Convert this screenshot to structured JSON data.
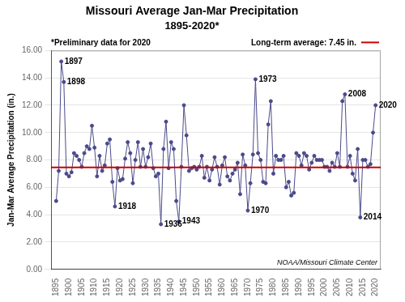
{
  "chart_data": {
    "type": "line",
    "title": "Missouri Average Jan-Mar Precipitation",
    "subtitle": "1895-2020*",
    "y_label": "Jan-Mar Average Precipitation (in.)",
    "note": "*Preliminary data for 2020",
    "source": "NOAA/Missouri Climate Center",
    "color": "#4a4a8a",
    "marker": "circle",
    "grid": "y",
    "reference_line": {
      "value": 7.45,
      "label": "Long-term average: 7.45 in.",
      "color": "#cc0000"
    },
    "xlim": [
      1893,
      2022
    ],
    "xticks": [
      1895,
      1900,
      1905,
      1910,
      1915,
      1920,
      1925,
      1930,
      1935,
      1940,
      1945,
      1950,
      1955,
      1960,
      1965,
      1970,
      1975,
      1980,
      1985,
      1990,
      1995,
      2000,
      2005,
      2010,
      2015,
      2020
    ],
    "ylim": [
      0.0,
      16.0
    ],
    "yticks": [
      {
        "value": 0.0,
        "label": "0.00"
      },
      {
        "value": 2.0,
        "label": "2.00"
      },
      {
        "value": 4.0,
        "label": "4.00"
      },
      {
        "value": 6.0,
        "label": "6.00"
      },
      {
        "value": 8.0,
        "label": "8.00"
      },
      {
        "value": 10.0,
        "label": "10.00"
      },
      {
        "value": 12.0,
        "label": "12.00"
      },
      {
        "value": 14.0,
        "label": "14.00"
      },
      {
        "value": 16.0,
        "label": "16.00"
      }
    ],
    "annotations": [
      {
        "text": "1897",
        "x": 1897,
        "y": 15.2
      },
      {
        "text": "1898",
        "x": 1898,
        "y": 13.7
      },
      {
        "text": "1918",
        "x": 1918,
        "y": 4.6
      },
      {
        "text": "1936",
        "x": 1936,
        "y": 3.3
      },
      {
        "text": "1943",
        "x": 1943,
        "y": 3.5
      },
      {
        "text": "1970",
        "x": 1970,
        "y": 4.3
      },
      {
        "text": "1973",
        "x": 1973,
        "y": 13.9
      },
      {
        "text": "2008",
        "x": 2008,
        "y": 12.8
      },
      {
        "text": "2014",
        "x": 2014,
        "y": 3.8
      },
      {
        "text": "2020",
        "x": 2020,
        "y": 12.0
      }
    ],
    "x": [
      1895,
      1896,
      1897,
      1898,
      1899,
      1900,
      1901,
      1902,
      1903,
      1904,
      1905,
      1906,
      1907,
      1908,
      1909,
      1910,
      1911,
      1912,
      1913,
      1914,
      1915,
      1916,
      1917,
      1918,
      1919,
      1920,
      1921,
      1922,
      1923,
      1924,
      1925,
      1926,
      1927,
      1928,
      1929,
      1930,
      1931,
      1932,
      1933,
      1934,
      1935,
      1936,
      1937,
      1938,
      1939,
      1940,
      1941,
      1942,
      1943,
      1944,
      1945,
      1946,
      1947,
      1948,
      1949,
      1950,
      1951,
      1952,
      1953,
      1954,
      1955,
      1956,
      1957,
      1958,
      1959,
      1960,
      1961,
      1962,
      1963,
      1964,
      1965,
      1966,
      1967,
      1968,
      1969,
      1970,
      1971,
      1972,
      1973,
      1974,
      1975,
      1976,
      1977,
      1978,
      1979,
      1980,
      1981,
      1982,
      1983,
      1984,
      1985,
      1986,
      1987,
      1988,
      1989,
      1990,
      1991,
      1992,
      1993,
      1994,
      1995,
      1996,
      1997,
      1998,
      1999,
      2000,
      2001,
      2002,
      2003,
      2004,
      2005,
      2006,
      2007,
      2008,
      2009,
      2010,
      2011,
      2012,
      2013,
      2014,
      2015,
      2016,
      2017,
      2018,
      2019,
      2020
    ],
    "values": [
      5.0,
      7.2,
      15.2,
      13.7,
      7.0,
      6.8,
      7.1,
      8.5,
      8.3,
      8.0,
      7.5,
      8.5,
      9.0,
      8.8,
      10.5,
      8.9,
      6.8,
      8.3,
      7.2,
      7.6,
      9.2,
      9.5,
      6.4,
      4.6,
      7.4,
      6.5,
      6.6,
      8.1,
      9.3,
      8.5,
      6.3,
      8.0,
      9.3,
      7.5,
      8.8,
      7.5,
      8.2,
      9.2,
      7.4,
      6.8,
      7.0,
      3.3,
      8.8,
      10.8,
      7.4,
      9.3,
      8.8,
      5.0,
      3.5,
      7.5,
      12.0,
      9.8,
      7.2,
      7.4,
      7.5,
      7.3,
      7.5,
      8.3,
      6.7,
      7.5,
      6.5,
      7.3,
      8.2,
      7.5,
      6.2,
      7.6,
      8.2,
      6.8,
      6.5,
      7.0,
      7.3,
      7.8,
      5.5,
      8.4,
      7.6,
      4.3,
      6.3,
      8.4,
      13.9,
      8.5,
      8.0,
      6.4,
      6.3,
      10.6,
      12.3,
      7.0,
      8.3,
      8.0,
      8.0,
      8.3,
      6.0,
      6.4,
      5.4,
      5.6,
      8.5,
      8.3,
      7.6,
      8.5,
      8.3,
      7.3,
      7.8,
      8.3,
      8.0,
      8.0,
      8.0,
      7.5,
      7.5,
      7.2,
      7.8,
      7.5,
      8.5,
      7.5,
      12.3,
      12.8,
      7.5,
      8.3,
      7.0,
      6.5,
      8.8,
      3.8,
      8.0,
      8.0,
      7.5,
      7.7,
      10.0,
      12.0
    ]
  }
}
